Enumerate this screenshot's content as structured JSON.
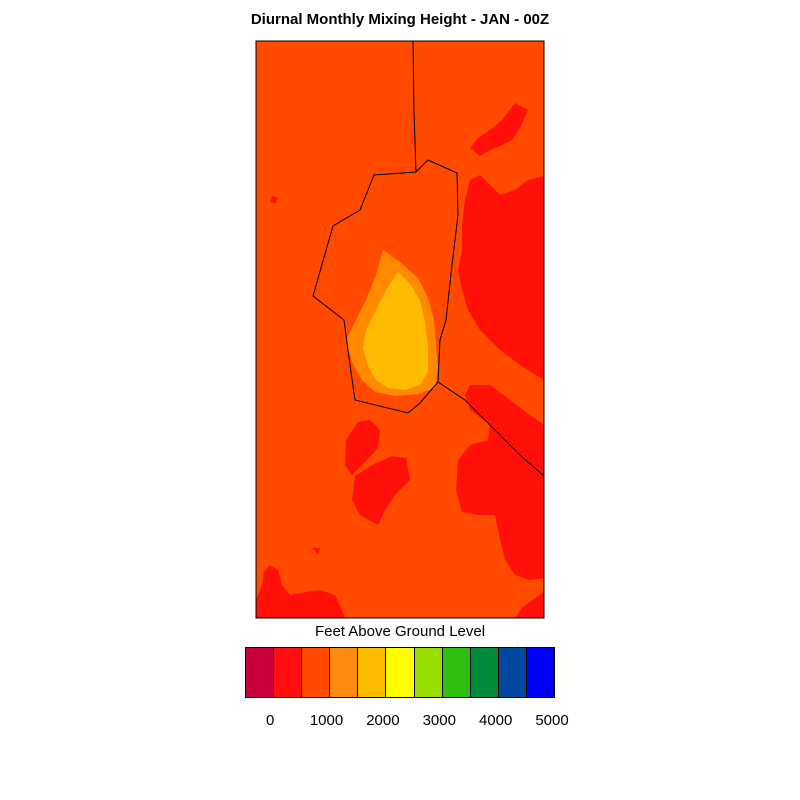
{
  "title": "Diurnal Monthly Mixing Height - JAN - 00Z",
  "colors": {
    "background": "#ff4a00",
    "band_500_1000": "#ff1008",
    "band_1500_2000": "#ff8a00",
    "band_2000_2500": "#ffbb00",
    "boundary": "#000000"
  },
  "legend": {
    "title": "Feet Above Ground Level",
    "swatches": [
      {
        "color": "#c8003a"
      },
      {
        "color": "#ff1010"
      },
      {
        "color": "#ff4a00"
      },
      {
        "color": "#ff8a10"
      },
      {
        "color": "#ffbb00"
      },
      {
        "color": "#ffff00"
      },
      {
        "color": "#9ade00"
      },
      {
        "color": "#2fbf10"
      },
      {
        "color": "#008a3a"
      },
      {
        "color": "#0048a0"
      },
      {
        "color": "#0000ff"
      }
    ],
    "tick_labels": [
      "0",
      "1000",
      "2000",
      "3000",
      "4000",
      "5000"
    ]
  }
}
